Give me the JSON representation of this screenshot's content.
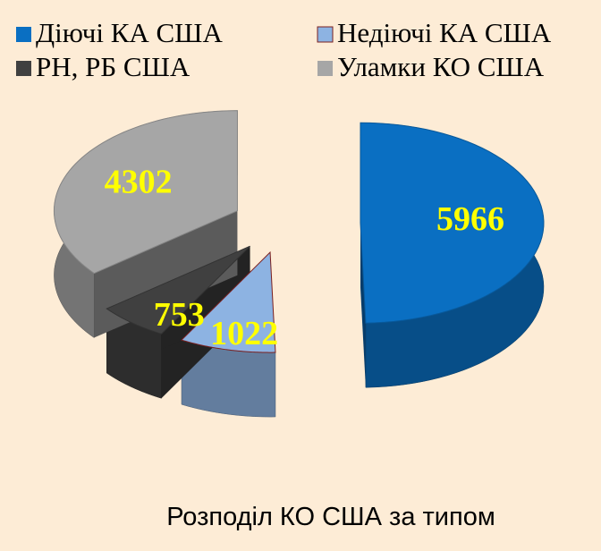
{
  "chart_data": {
    "type": "pie3d",
    "title": "Розподіл КО США за типом",
    "categories": [
      "Діючі КА США",
      "Недіючі КА США",
      "РН, РБ США",
      "Уламки КО США"
    ],
    "values": [
      5966,
      1022,
      753,
      4302
    ],
    "colors": [
      "#0a6fc2",
      "#8db3e2",
      "#404040",
      "#a6a6a6"
    ],
    "legend": "top"
  }
}
